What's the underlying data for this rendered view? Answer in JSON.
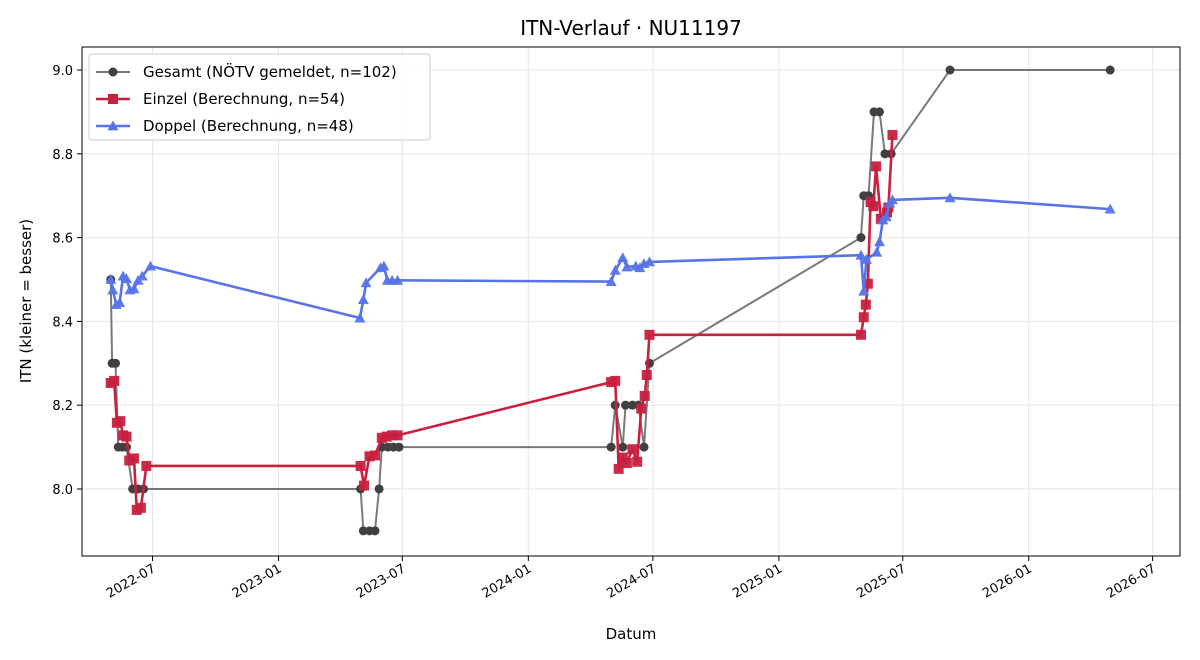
{
  "chart_data": {
    "type": "line",
    "title": "ITN-Verlauf · NU11197",
    "xlabel": "Datum",
    "ylabel": "ITN  (kleiner = besser)",
    "x_type": "date",
    "xlim": [
      "2022-03-20",
      "2026-08-10"
    ],
    "ylim": [
      7.84,
      9.055
    ],
    "x_ticks": [
      "2022-07-01",
      "2023-01-01",
      "2023-07-01",
      "2024-01-01",
      "2024-07-01",
      "2025-01-01",
      "2025-07-01",
      "2026-01-01",
      "2026-07-01"
    ],
    "x_tick_labels": [
      "2022-07",
      "2023-01",
      "2023-07",
      "2024-01",
      "2024-07",
      "2025-01",
      "2025-07",
      "2026-01",
      "2026-07"
    ],
    "y_ticks": [
      8.0,
      8.2,
      8.4,
      8.6,
      8.8,
      9.0
    ],
    "y_tick_labels": [
      "8.0",
      "8.2",
      "8.4",
      "8.6",
      "8.8",
      "9.0"
    ],
    "grid": true,
    "legend_position": "top-left",
    "series": [
      {
        "name": "Gesamt (NÖTV gemeldet, n=102)",
        "color": "#404040",
        "marker": "circle",
        "points": [
          [
            "2022-05-01",
            8.5
          ],
          [
            "2022-05-03",
            8.3
          ],
          [
            "2022-05-08",
            8.3
          ],
          [
            "2022-05-12",
            8.1
          ],
          [
            "2022-05-18",
            8.1
          ],
          [
            "2022-05-24",
            8.1
          ],
          [
            "2022-06-02",
            8.0
          ],
          [
            "2022-06-10",
            8.0
          ],
          [
            "2022-06-18",
            8.0
          ],
          [
            "2023-05-01",
            8.0
          ],
          [
            "2023-05-05",
            7.9
          ],
          [
            "2023-05-14",
            7.9
          ],
          [
            "2023-05-22",
            7.9
          ],
          [
            "2023-05-28",
            8.0
          ],
          [
            "2023-06-01",
            8.1
          ],
          [
            "2023-06-10",
            8.1
          ],
          [
            "2023-06-18",
            8.1
          ],
          [
            "2023-06-26",
            8.1
          ],
          [
            "2024-05-01",
            8.1
          ],
          [
            "2024-05-07",
            8.2
          ],
          [
            "2024-05-18",
            8.1
          ],
          [
            "2024-05-22",
            8.2
          ],
          [
            "2024-06-01",
            8.2
          ],
          [
            "2024-06-10",
            8.2
          ],
          [
            "2024-06-18",
            8.1
          ],
          [
            "2024-06-26",
            8.3
          ],
          [
            "2025-05-01",
            8.6
          ],
          [
            "2025-05-05",
            8.7
          ],
          [
            "2025-05-12",
            8.7
          ],
          [
            "2025-05-20",
            8.9
          ],
          [
            "2025-05-28",
            8.9
          ],
          [
            "2025-06-05",
            8.8
          ],
          [
            "2025-06-14",
            8.8
          ],
          [
            "2025-09-08",
            9.0
          ],
          [
            "2026-04-30",
            9.0
          ]
        ]
      },
      {
        "name": "Einzel (Berechnung, n=54)",
        "color": "#c8203f",
        "marker": "square",
        "points": [
          [
            "2022-05-01",
            8.253
          ],
          [
            "2022-05-06",
            8.258
          ],
          [
            "2022-05-10",
            8.158
          ],
          [
            "2022-05-15",
            8.162
          ],
          [
            "2022-05-19",
            8.128
          ],
          [
            "2022-05-24",
            8.125
          ],
          [
            "2022-05-28",
            8.068
          ],
          [
            "2022-06-04",
            8.073
          ],
          [
            "2022-06-08",
            7.95
          ],
          [
            "2022-06-14",
            7.955
          ],
          [
            "2022-06-22",
            8.055
          ],
          [
            "2023-05-01",
            8.055
          ],
          [
            "2023-05-06",
            8.008
          ],
          [
            "2023-05-14",
            8.078
          ],
          [
            "2023-05-22",
            8.08
          ],
          [
            "2023-06-01",
            8.122
          ],
          [
            "2023-06-08",
            8.125
          ],
          [
            "2023-06-16",
            8.128
          ],
          [
            "2023-06-24",
            8.128
          ],
          [
            "2024-05-01",
            8.255
          ],
          [
            "2024-05-07",
            8.258
          ],
          [
            "2024-05-12",
            8.048
          ],
          [
            "2024-05-18",
            8.075
          ],
          [
            "2024-05-24",
            8.062
          ],
          [
            "2024-06-01",
            8.095
          ],
          [
            "2024-06-08",
            8.065
          ],
          [
            "2024-06-14",
            8.192
          ],
          [
            "2024-06-19",
            8.222
          ],
          [
            "2024-06-22",
            8.272
          ],
          [
            "2024-06-26",
            8.368
          ],
          [
            "2025-05-01",
            8.368
          ],
          [
            "2025-05-05",
            8.41
          ],
          [
            "2025-05-08",
            8.44
          ],
          [
            "2025-05-11",
            8.49
          ],
          [
            "2025-05-15",
            8.685
          ],
          [
            "2025-05-19",
            8.675
          ],
          [
            "2025-05-23",
            8.77
          ],
          [
            "2025-05-30",
            8.645
          ],
          [
            "2025-06-08",
            8.66
          ],
          [
            "2025-06-10",
            8.672
          ],
          [
            "2025-06-16",
            8.845
          ]
        ]
      },
      {
        "name": "Doppel (Berechnung, n=48)",
        "color": "#5674e8",
        "marker": "triangle",
        "points": [
          [
            "2022-05-01",
            8.5
          ],
          [
            "2022-05-04",
            8.475
          ],
          [
            "2022-05-09",
            8.44
          ],
          [
            "2022-05-14",
            8.445
          ],
          [
            "2022-05-19",
            8.508
          ],
          [
            "2022-05-24",
            8.502
          ],
          [
            "2022-05-29",
            8.475
          ],
          [
            "2022-06-04",
            8.478
          ],
          [
            "2022-06-10",
            8.498
          ],
          [
            "2022-06-16",
            8.508
          ],
          [
            "2022-06-28",
            8.532
          ],
          [
            "2023-04-30",
            8.408
          ],
          [
            "2023-05-05",
            8.452
          ],
          [
            "2023-05-09",
            8.492
          ],
          [
            "2023-05-30",
            8.528
          ],
          [
            "2023-06-04",
            8.532
          ],
          [
            "2023-06-09",
            8.498
          ],
          [
            "2023-06-16",
            8.498
          ],
          [
            "2023-06-24",
            8.498
          ],
          [
            "2024-05-01",
            8.495
          ],
          [
            "2024-05-07",
            8.522
          ],
          [
            "2024-05-18",
            8.552
          ],
          [
            "2024-05-24",
            8.53
          ],
          [
            "2024-06-06",
            8.532
          ],
          [
            "2024-06-12",
            8.528
          ],
          [
            "2024-06-18",
            8.538
          ],
          [
            "2024-06-26",
            8.542
          ],
          [
            "2025-05-01",
            8.558
          ],
          [
            "2025-05-05",
            8.472
          ],
          [
            "2025-05-09",
            8.548
          ],
          [
            "2025-05-24",
            8.565
          ],
          [
            "2025-05-28",
            8.59
          ],
          [
            "2025-06-02",
            8.642
          ],
          [
            "2025-06-07",
            8.65
          ],
          [
            "2025-06-12",
            8.682
          ],
          [
            "2025-06-16",
            8.69
          ],
          [
            "2025-09-08",
            8.695
          ],
          [
            "2026-04-30",
            8.668
          ]
        ]
      }
    ]
  }
}
